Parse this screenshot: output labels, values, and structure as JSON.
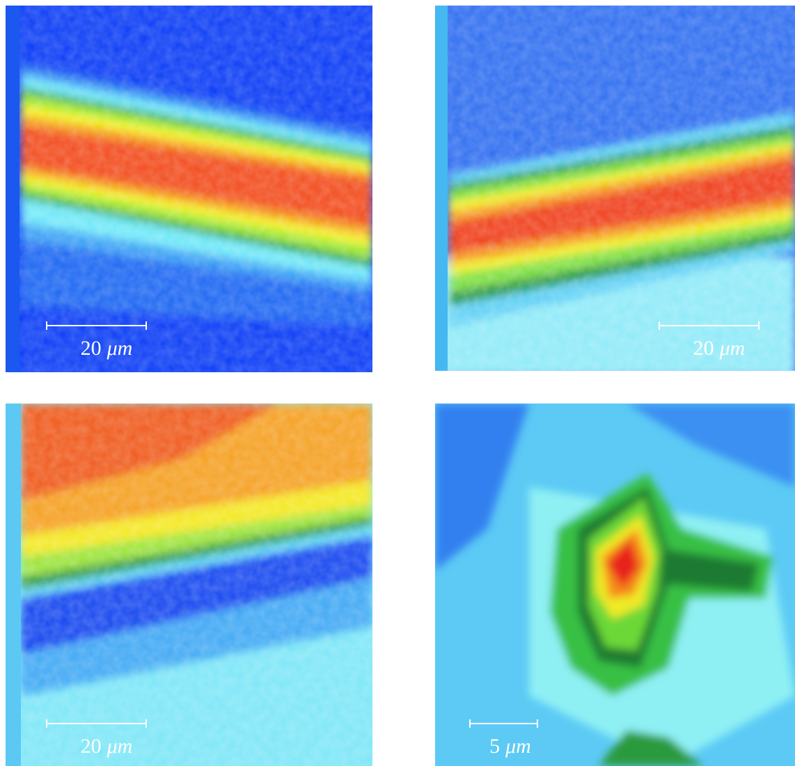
{
  "panels": [
    {
      "scale_value": "20",
      "unit": "μm"
    },
    {
      "scale_value": "20",
      "unit": "μm"
    },
    {
      "scale_value": "20",
      "unit": "μm"
    },
    {
      "scale_value": "5",
      "unit": "μm"
    }
  ]
}
